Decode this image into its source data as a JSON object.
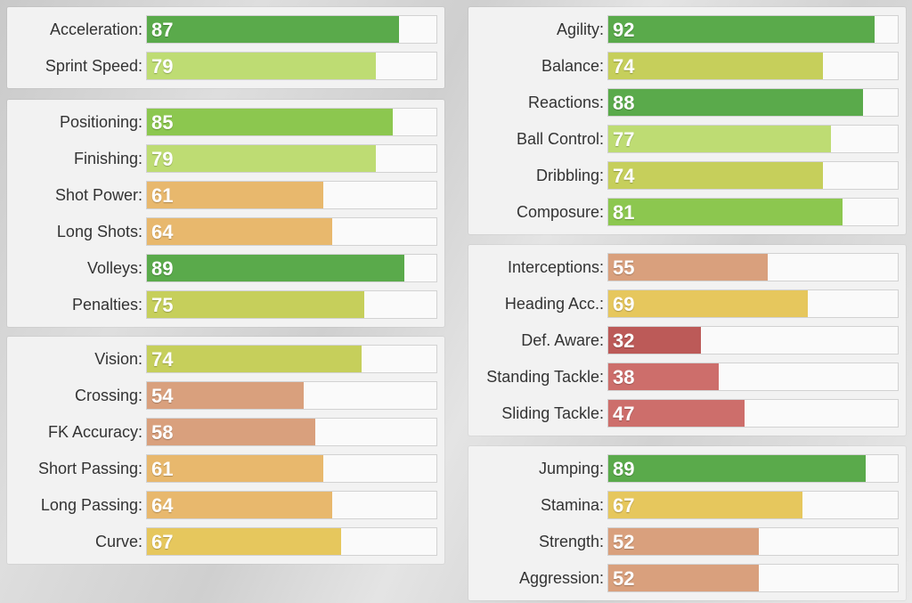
{
  "colors": {
    "excellent": "#5aaa4b",
    "very_good": "#8cc74f",
    "good": "#bedc73",
    "fair": "#c6cf5b",
    "average": "#e6c75d",
    "below_avg": "#e8b86d",
    "poor": "#d9a07d",
    "low": "#cd6e6b",
    "very_low": "#bc5a58"
  },
  "left_panels": [
    {
      "stats": [
        {
          "label": "Acceleration:",
          "value": "87"
        },
        {
          "label": "Sprint Speed:",
          "value": "79"
        }
      ]
    },
    {
      "stats": [
        {
          "label": "Positioning:",
          "value": "85"
        },
        {
          "label": "Finishing:",
          "value": "79"
        },
        {
          "label": "Shot Power:",
          "value": "61"
        },
        {
          "label": "Long Shots:",
          "value": "64"
        },
        {
          "label": "Volleys:",
          "value": "89"
        },
        {
          "label": "Penalties:",
          "value": "75"
        }
      ]
    },
    {
      "stats": [
        {
          "label": "Vision:",
          "value": "74"
        },
        {
          "label": "Crossing:",
          "value": "54"
        },
        {
          "label": "FK Accuracy:",
          "value": "58"
        },
        {
          "label": "Short Passing:",
          "value": "61"
        },
        {
          "label": "Long Passing:",
          "value": "64"
        },
        {
          "label": "Curve:",
          "value": "67"
        }
      ]
    }
  ],
  "right_panels": [
    {
      "stats": [
        {
          "label": "Agility:",
          "value": "92"
        },
        {
          "label": "Balance:",
          "value": "74"
        },
        {
          "label": "Reactions:",
          "value": "88"
        },
        {
          "label": "Ball Control:",
          "value": "77"
        },
        {
          "label": "Dribbling:",
          "value": "74"
        },
        {
          "label": "Composure:",
          "value": "81"
        }
      ]
    },
    {
      "stats": [
        {
          "label": "Interceptions:",
          "value": "55"
        },
        {
          "label": "Heading Acc.:",
          "value": "69"
        },
        {
          "label": "Def. Aware:",
          "value": "32"
        },
        {
          "label": "Standing Tackle:",
          "value": "38"
        },
        {
          "label": "Sliding Tackle:",
          "value": "47"
        }
      ]
    },
    {
      "stats": [
        {
          "label": "Jumping:",
          "value": "89"
        },
        {
          "label": "Stamina:",
          "value": "67"
        },
        {
          "label": "Strength:",
          "value": "52"
        },
        {
          "label": "Aggression:",
          "value": "52"
        }
      ]
    }
  ]
}
